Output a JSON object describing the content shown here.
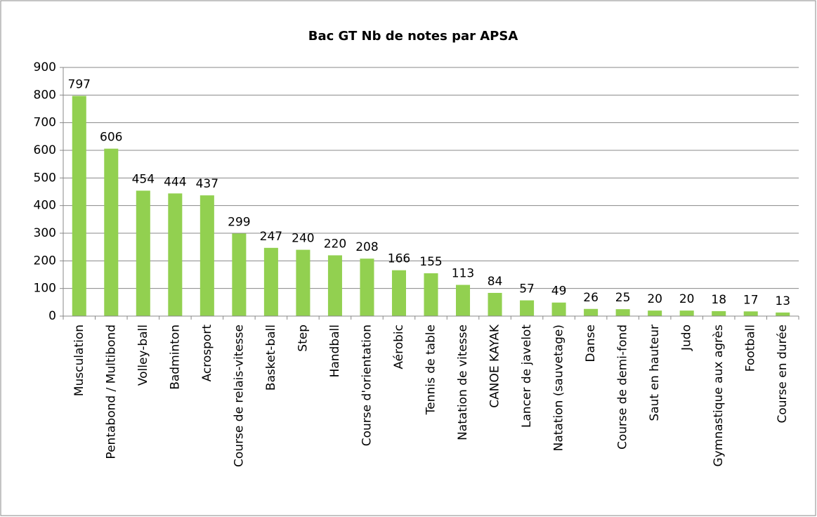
{
  "chart_data": {
    "type": "bar",
    "title": "Bac GT Nb de notes par APSA",
    "categories": [
      "Musculation",
      "Pentabond / Multibond",
      "Volley-ball",
      "Badminton",
      "Acrosport",
      "Course de relais-vitesse",
      "Basket-ball",
      "Step",
      "Handball",
      "Course d'orientation",
      "Aérobic",
      "Tennis de table",
      "Natation de vitesse",
      "CANOE KAYAK",
      "Lancer de javelot",
      "Natation (sauvetage)",
      "Danse",
      "Course de demi-fond",
      "Saut en hauteur",
      "Judo",
      "Gymnastique aux agrès",
      "Football",
      "Course en durée"
    ],
    "values": [
      797,
      606,
      454,
      444,
      437,
      299,
      247,
      240,
      220,
      208,
      166,
      155,
      113,
      84,
      57,
      49,
      26,
      25,
      20,
      20,
      18,
      17,
      13
    ],
    "color": "#92d050",
    "ylim": [
      0,
      900
    ],
    "yticks": [
      0,
      100,
      200,
      300,
      400,
      500,
      600,
      700,
      800,
      900
    ],
    "grid": true
  }
}
